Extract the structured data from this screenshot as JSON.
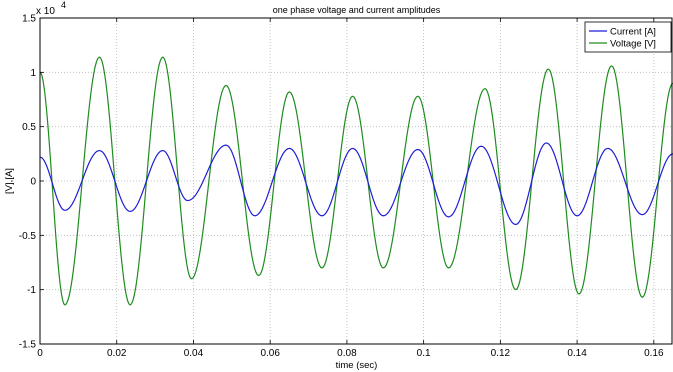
{
  "chart_data": {
    "type": "line",
    "title": "one phase voltage and current amplitudes",
    "xlabel": "time (sec)",
    "ylabel": "[V],[A]",
    "y_multiplier_label": {
      "base": "x 10",
      "exponent": "4"
    },
    "xlim": [
      0,
      0.165
    ],
    "ylim": [
      -1.5,
      1.5
    ],
    "y_scale_factor": 10000,
    "x_ticks": [
      0,
      0.02,
      0.04,
      0.06,
      0.08,
      0.1,
      0.12,
      0.14,
      0.16
    ],
    "x_tick_labels": [
      "0",
      "0.02",
      "0.04",
      "0.06",
      "0.08",
      "0.1",
      "0.12",
      "0.14",
      "0.16"
    ],
    "y_ticks": [
      -1.5,
      -1,
      -0.5,
      0,
      0.5,
      1,
      1.5
    ],
    "y_tick_labels": [
      "-1.5",
      "-1",
      "-0.5",
      "0",
      "0.5",
      "1",
      "1.5"
    ],
    "grid": true,
    "legend": {
      "position": "top-right"
    },
    "series": [
      {
        "name": "Current [A]",
        "color": "#1f1fd6",
        "frequency_hz": 60,
        "phase_shift_deg": 0,
        "peaks": [
          {
            "t": 0.0,
            "v": 0.22
          },
          {
            "t": 0.0065,
            "v": -0.27
          },
          {
            "t": 0.0155,
            "v": 0.28
          },
          {
            "t": 0.0235,
            "v": -0.28
          },
          {
            "t": 0.032,
            "v": 0.28
          },
          {
            "t": 0.0385,
            "v": -0.18
          },
          {
            "t": 0.0485,
            "v": 0.33
          },
          {
            "t": 0.056,
            "v": -0.32
          },
          {
            "t": 0.065,
            "v": 0.3
          },
          {
            "t": 0.0735,
            "v": -0.32
          },
          {
            "t": 0.0815,
            "v": 0.3
          },
          {
            "t": 0.0895,
            "v": -0.32
          },
          {
            "t": 0.0985,
            "v": 0.29
          },
          {
            "t": 0.1065,
            "v": -0.33
          },
          {
            "t": 0.115,
            "v": 0.32
          },
          {
            "t": 0.124,
            "v": -0.4
          },
          {
            "t": 0.132,
            "v": 0.35
          },
          {
            "t": 0.14,
            "v": -0.32
          },
          {
            "t": 0.148,
            "v": 0.3
          },
          {
            "t": 0.157,
            "v": -0.31
          },
          {
            "t": 0.165,
            "v": 0.25
          }
        ]
      },
      {
        "name": "Voltage [V]",
        "color": "#1e8c1e",
        "frequency_hz": 60,
        "peaks": [
          {
            "t": 0.0,
            "v": 1.0
          },
          {
            "t": 0.0065,
            "v": -1.14
          },
          {
            "t": 0.0155,
            "v": 1.14
          },
          {
            "t": 0.0235,
            "v": -1.14
          },
          {
            "t": 0.032,
            "v": 1.14
          },
          {
            "t": 0.0395,
            "v": -0.9
          },
          {
            "t": 0.0485,
            "v": 0.88
          },
          {
            "t": 0.057,
            "v": -0.87
          },
          {
            "t": 0.065,
            "v": 0.82
          },
          {
            "t": 0.0735,
            "v": -0.8
          },
          {
            "t": 0.0815,
            "v": 0.78
          },
          {
            "t": 0.0895,
            "v": -0.8
          },
          {
            "t": 0.0985,
            "v": 0.78
          },
          {
            "t": 0.1065,
            "v": -0.8
          },
          {
            "t": 0.116,
            "v": 0.85
          },
          {
            "t": 0.124,
            "v": -1.0
          },
          {
            "t": 0.1325,
            "v": 1.03
          },
          {
            "t": 0.1405,
            "v": -1.04
          },
          {
            "t": 0.149,
            "v": 1.06
          },
          {
            "t": 0.157,
            "v": -1.07
          },
          {
            "t": 0.165,
            "v": 0.9
          }
        ]
      }
    ]
  }
}
